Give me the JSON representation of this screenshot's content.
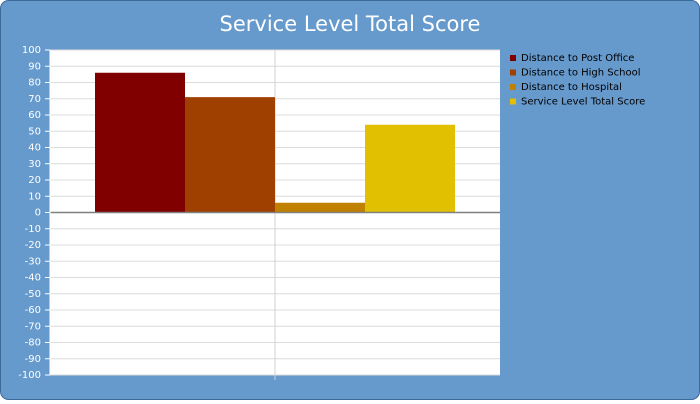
{
  "chart_data": {
    "type": "bar",
    "title": "Service Level Total Score",
    "categories": [
      null
    ],
    "series": [
      {
        "name": "Distance to Post Office",
        "color": "#800000",
        "values": [
          86
        ]
      },
      {
        "name": "Distance to High School",
        "color": "#a04000",
        "values": [
          71
        ]
      },
      {
        "name": "Distance to Hospital",
        "color": "#c08000",
        "values": [
          6
        ]
      },
      {
        "name": "Service Level Total Score",
        "color": "#e0c000",
        "values": [
          54
        ]
      }
    ],
    "ylim": [
      -100,
      100
    ],
    "yticks": [
      -100,
      -90,
      -80,
      -70,
      -60,
      -50,
      -40,
      -30,
      -20,
      -10,
      0,
      10,
      20,
      30,
      40,
      50,
      60,
      70,
      80,
      90,
      100
    ],
    "grid": true,
    "legend": "right"
  }
}
